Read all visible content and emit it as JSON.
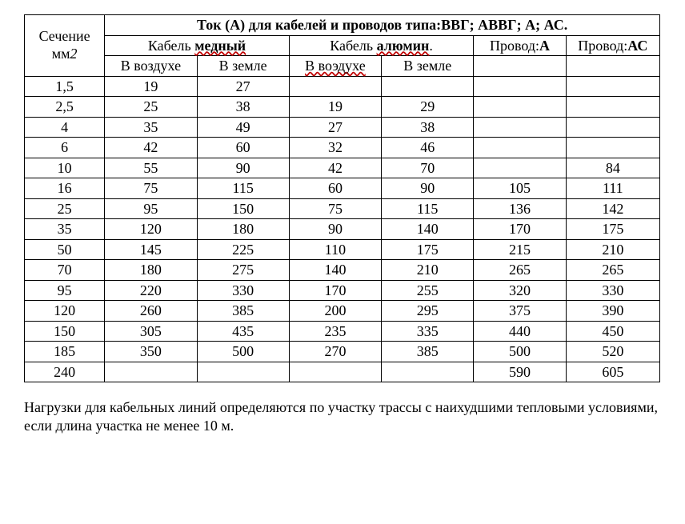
{
  "header": {
    "section_label": "Сечение мм",
    "section_unit_italic": "2",
    "main": "Ток (А) для кабелей и проводов типа:ВВГ; АВВГ; А; АС.",
    "copper_pre": "Кабель ",
    "copper_bold": "медный",
    "alum_pre": "Кабель ",
    "alum_bold": "алюмин",
    "alum_post": ".",
    "wire_a_pre": "Провод:",
    "wire_a_bold": "А",
    "wire_ac_pre": "Провод:",
    "wire_ac_bold": "АС",
    "in_air": "В воздухе",
    "in_ground": "В земле",
    "in_air2": "В воэдухе",
    "in_ground2": "В земле"
  },
  "rows": [
    {
      "s": "1,5",
      "cu_a": "19",
      "cu_g": "27",
      "al_a": "",
      "al_g": "",
      "wa": "",
      "wac": ""
    },
    {
      "s": "2,5",
      "cu_a": "25",
      "cu_g": "38",
      "al_a": "19",
      "al_g": "29",
      "wa": "",
      "wac": ""
    },
    {
      "s": "4",
      "cu_a": "35",
      "cu_g": "49",
      "al_a": "27",
      "al_g": "38",
      "wa": "",
      "wac": ""
    },
    {
      "s": "6",
      "cu_a": "42",
      "cu_g": "60",
      "al_a": "32",
      "al_g": "46",
      "wa": "",
      "wac": ""
    },
    {
      "s": "10",
      "cu_a": "55",
      "cu_g": "90",
      "al_a": "42",
      "al_g": "70",
      "wa": "",
      "wac": "84"
    },
    {
      "s": "16",
      "cu_a": "75",
      "cu_g": "115",
      "al_a": "60",
      "al_g": "90",
      "wa": "105",
      "wac": "111"
    },
    {
      "s": "25",
      "cu_a": "95",
      "cu_g": "150",
      "al_a": "75",
      "al_g": "115",
      "wa": "136",
      "wac": "142"
    },
    {
      "s": "35",
      "cu_a": "120",
      "cu_g": "180",
      "al_a": "90",
      "al_g": "140",
      "wa": "170",
      "wac": "175"
    },
    {
      "s": "50",
      "cu_a": "145",
      "cu_g": "225",
      "al_a": "110",
      "al_g": "175",
      "wa": "215",
      "wac": "210"
    },
    {
      "s": "70",
      "cu_a": "180",
      "cu_g": "275",
      "al_a": "140",
      "al_g": "210",
      "wa": "265",
      "wac": "265"
    },
    {
      "s": "95",
      "cu_a": "220",
      "cu_g": "330",
      "al_a": "170",
      "al_g": "255",
      "wa": "320",
      "wac": "330"
    },
    {
      "s": "120",
      "cu_a": "260",
      "cu_g": "385",
      "al_a": "200",
      "al_g": "295",
      "wa": "375",
      "wac": "390"
    },
    {
      "s": "150",
      "cu_a": "305",
      "cu_g": "435",
      "al_a": "235",
      "al_g": "335",
      "wa": "440",
      "wac": "450"
    },
    {
      "s": "185",
      "cu_a": "350",
      "cu_g": "500",
      "al_a": "270",
      "al_g": "385",
      "wa": "500",
      "wac": "520"
    },
    {
      "s": "240",
      "cu_a": "",
      "cu_g": "",
      "al_a": "",
      "al_g": "",
      "wa": "590",
      "wac": "605"
    }
  ],
  "note": "Нагрузки для кабельных линий определяются по участку трассы с наихудшими тепловыми условиями, если длина участка не менее 10 м."
}
